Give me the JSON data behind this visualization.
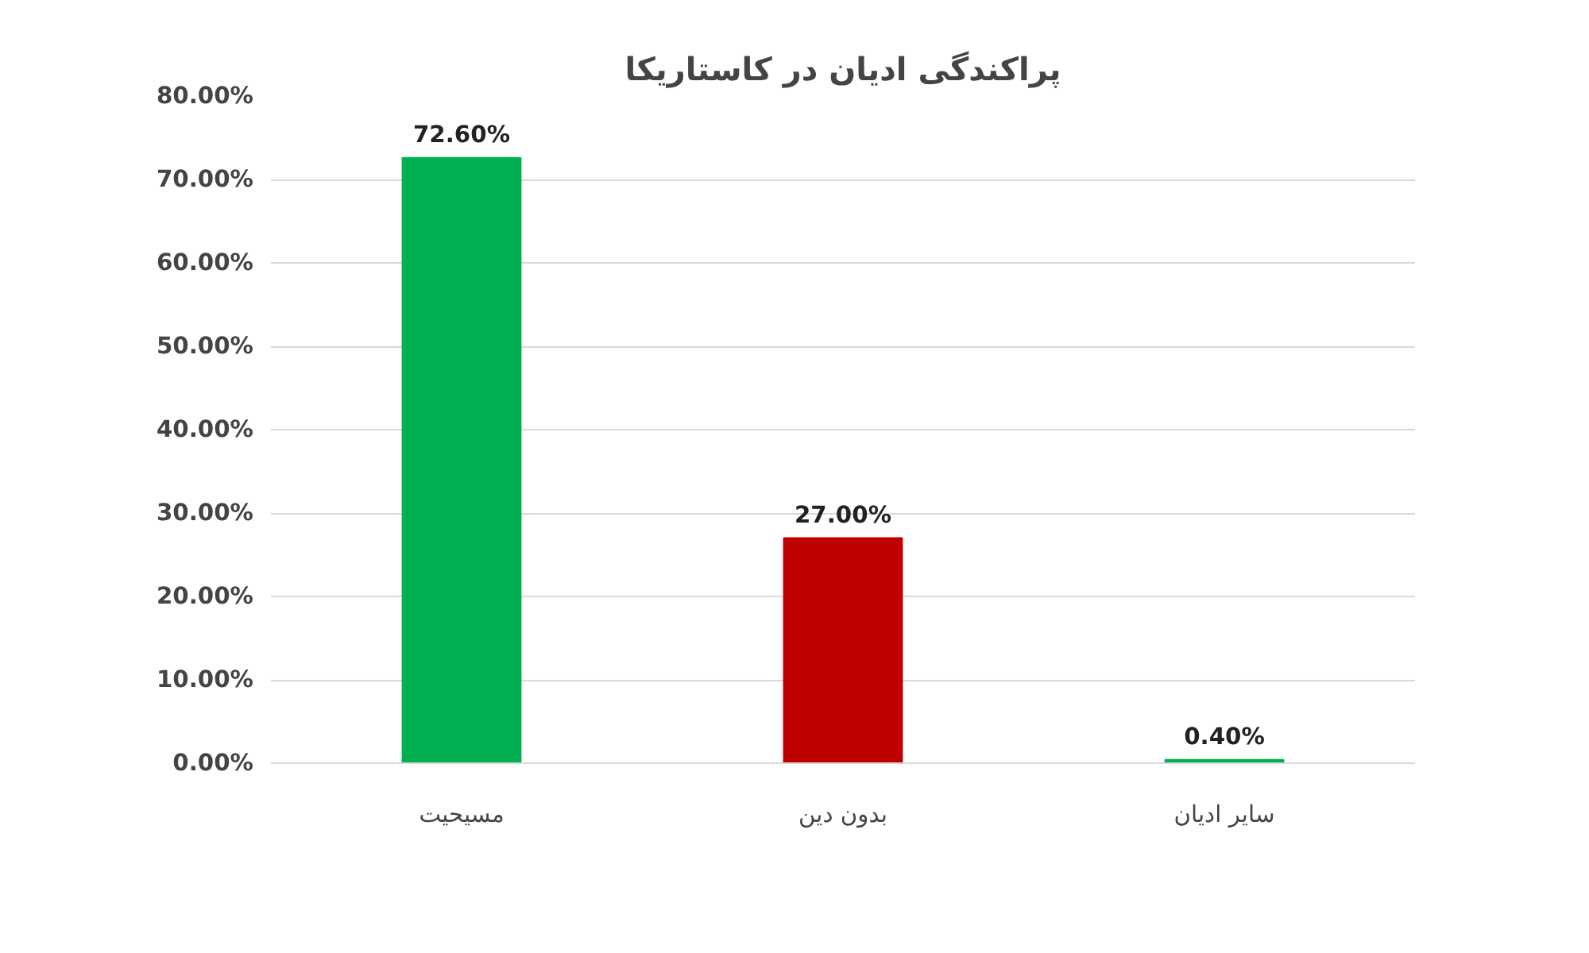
{
  "chart_data": {
    "type": "bar",
    "title": "پراکندگی ادیان در کاستاریکا",
    "categories": [
      "مسیحیت",
      "بدون دین",
      "سایر ادیان"
    ],
    "values": [
      72.6,
      27.0,
      0.4
    ],
    "colors": [
      "#00b050",
      "#c00000",
      "#00b050"
    ],
    "value_labels": [
      "72.60%",
      "27.00%",
      "0.40%"
    ],
    "ylim": [
      0,
      80
    ],
    "yticks": [
      {
        "value": 0,
        "label": "0.00%"
      },
      {
        "value": 10,
        "label": "10.00%"
      },
      {
        "value": 20,
        "label": "20.00%"
      },
      {
        "value": 30,
        "label": "30.00%"
      },
      {
        "value": 40,
        "label": "40.00%"
      },
      {
        "value": 50,
        "label": "50.00%"
      },
      {
        "value": 60,
        "label": "60.00%"
      },
      {
        "value": 70,
        "label": "70.00%"
      },
      {
        "value": 80,
        "label": "80.00%"
      }
    ],
    "grid": "y"
  }
}
